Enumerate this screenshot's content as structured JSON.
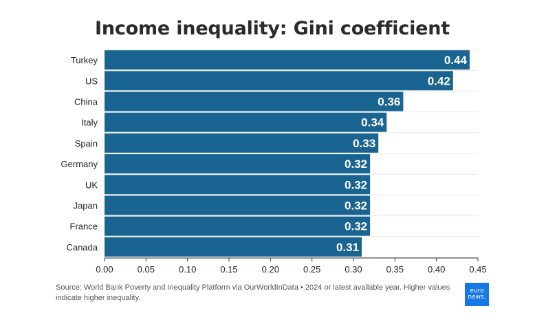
{
  "chart_data": {
    "type": "bar",
    "orientation": "horizontal",
    "title": "Income inequality: Gini coefficient",
    "categories": [
      "Turkey",
      "US",
      "China",
      "Italy",
      "Spain",
      "Germany",
      "UK",
      "Japan",
      "France",
      "Canada"
    ],
    "values": [
      0.44,
      0.42,
      0.36,
      0.34,
      0.33,
      0.32,
      0.32,
      0.32,
      0.32,
      0.31
    ],
    "value_labels": [
      "0.44",
      "0.42",
      "0.36",
      "0.34",
      "0.33",
      "0.32",
      "0.32",
      "0.32",
      "0.32",
      "0.31"
    ],
    "x_ticks": [
      "0.00",
      "0.05",
      "0.10",
      "0.15",
      "0.20",
      "0.25",
      "0.30",
      "0.35",
      "0.40",
      "0.45"
    ],
    "xlim": [
      0,
      0.45
    ],
    "xlabel": "",
    "ylabel": "",
    "bar_color": "#1a6491",
    "grid": true
  },
  "source_note": "Source: World Bank Poverty and Inequality Platform via OurWorldInData • 2024 or latest available year. Higher values indicate higher inequality.",
  "logo": {
    "line1": "euro",
    "line2": "news."
  }
}
